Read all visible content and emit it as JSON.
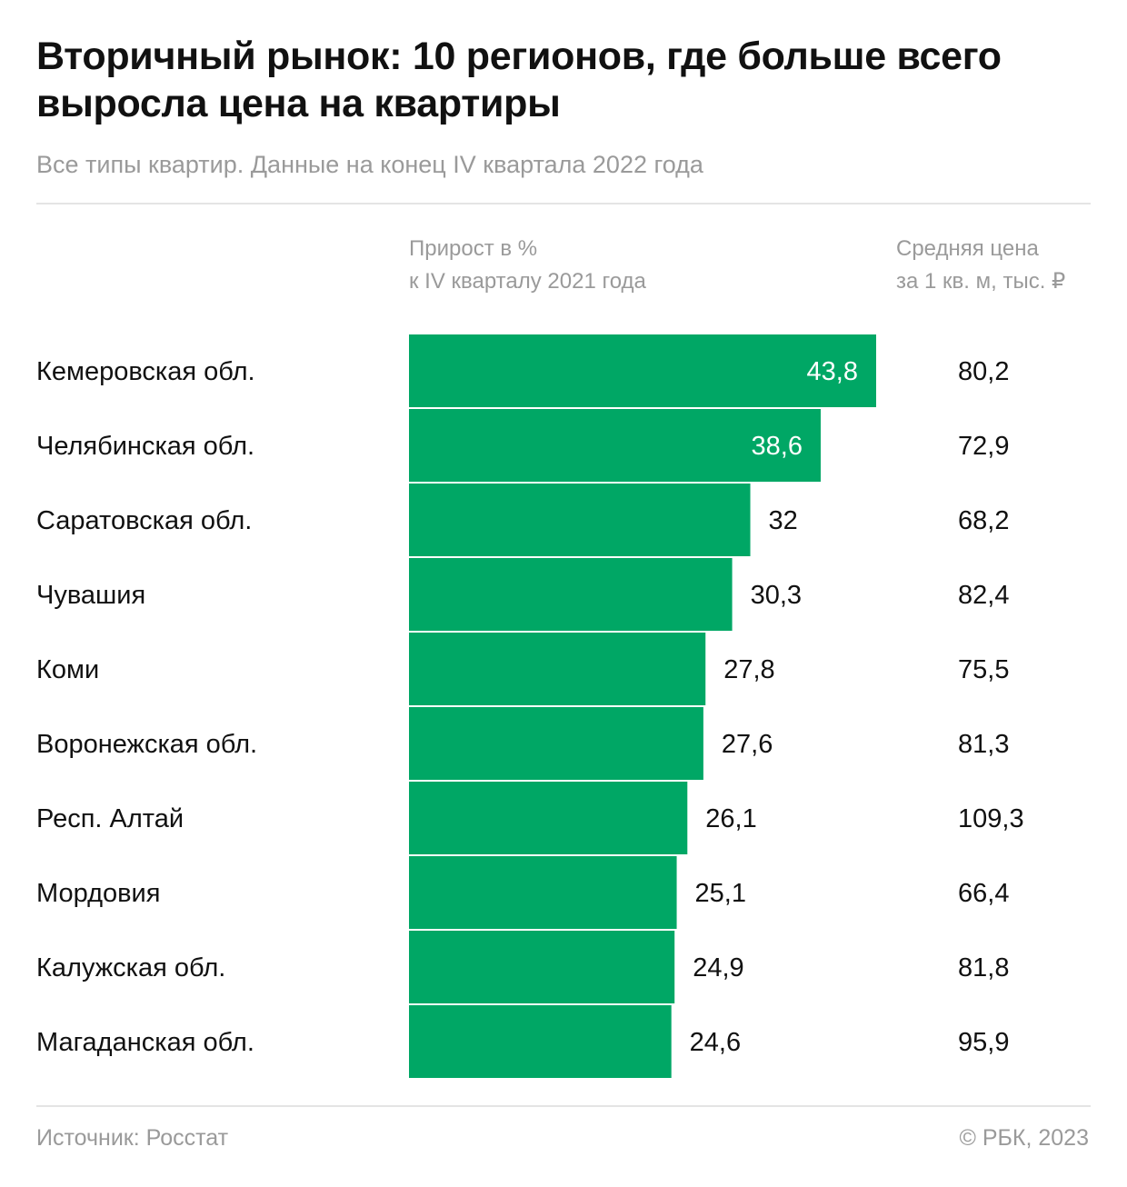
{
  "header": {
    "title": "Вторичный рынок: 10 регионов, где больше всего выросла цена на квартиры",
    "subtitle": "Все типы квартир. Данные на конец IV квартала 2022 года"
  },
  "columns": {
    "growth_line1": "Прирост в %",
    "growth_line2": "к IV кварталу 2021 года",
    "price_line1": "Средняя цена",
    "price_line2": "за 1 кв. м, тыс. ₽"
  },
  "footer": {
    "source": "Источник: Росстат",
    "copyright": "© РБК, 2023"
  },
  "chart_data": {
    "type": "bar",
    "orientation": "horizontal",
    "bar_color": "#00a765",
    "categories": [
      "Кемеровская обл.",
      "Челябинская обл.",
      "Саратовская обл.",
      "Чувашия",
      "Коми",
      "Воронежская обл.",
      "Респ. Алтай",
      "Мордовия",
      "Калужская обл.",
      "Магаданская обл."
    ],
    "values": [
      43.8,
      38.6,
      32,
      30.3,
      27.8,
      27.6,
      26.1,
      25.1,
      24.9,
      24.6
    ],
    "value_labels": [
      "43,8",
      "38,6",
      "32",
      "30,3",
      "27,8",
      "27,6",
      "26,1",
      "25,1",
      "24,9",
      "24,6"
    ],
    "price": [
      80.2,
      72.9,
      68.2,
      82.4,
      75.5,
      81.3,
      109.3,
      66.4,
      81.8,
      95.9
    ],
    "price_labels": [
      "80,2",
      "72,9",
      "68,2",
      "82,4",
      "75,5",
      "81,3",
      "109,3",
      "66,4",
      "81,8",
      "95,9"
    ]
  }
}
